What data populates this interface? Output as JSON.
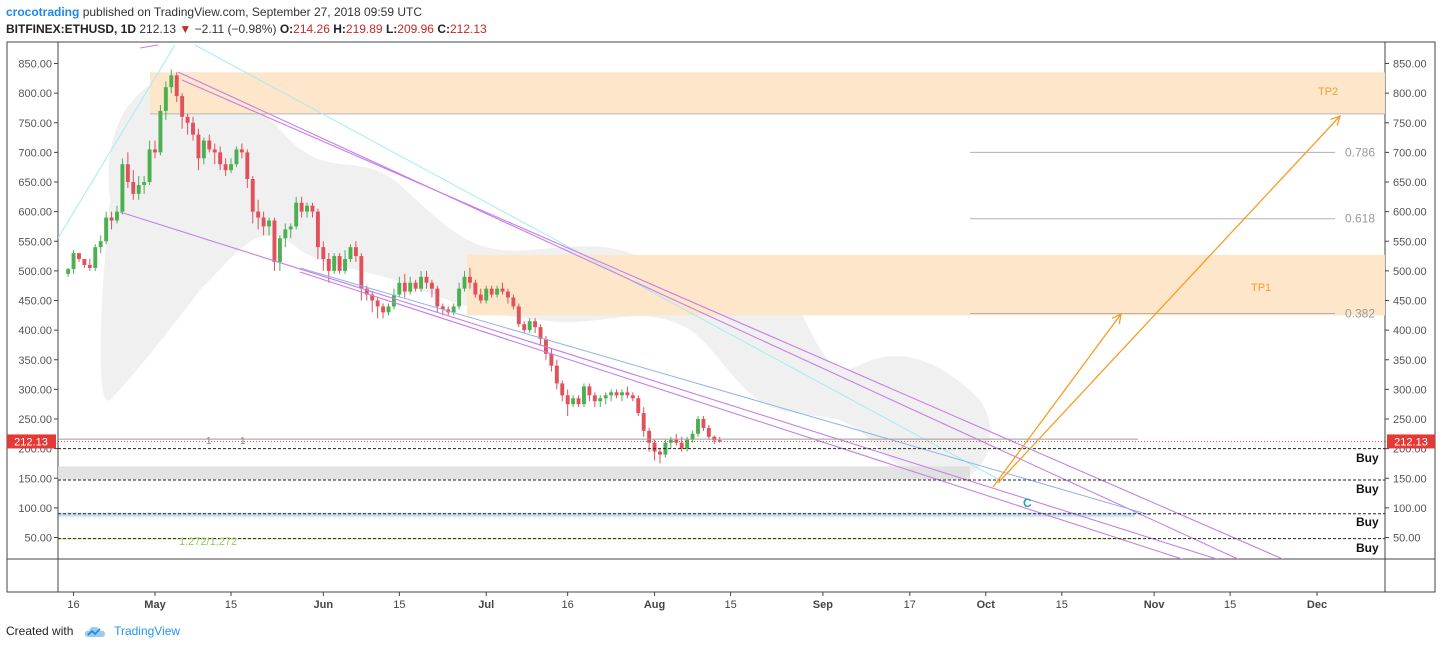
{
  "header": {
    "author": "crocotrading",
    "published": "published on TradingView.com, September 27, 2018 09:59 UTC",
    "symbol": "BITFINEX:ETHUSD, 1D",
    "last": "212.13",
    "change": "−2.11 (−0.98%)",
    "o_label": "O:",
    "o_value": "214.26",
    "h_label": "H:",
    "h_value": "219.89",
    "l_label": "L:",
    "l_value": "209.96",
    "c_label": "C:",
    "c_value": "212.13"
  },
  "footer": {
    "created_with": "Created with",
    "brand": "TradingView",
    "logo_icon": "tradingview-cloud-icon"
  },
  "colors": {
    "up": "#4caf50",
    "down": "#e0515b",
    "zone": "#fde5c6",
    "wedge": "#c77fe8",
    "trendline": "#a5ecf0",
    "arrow": "#f59d26",
    "price_line": "#e53935",
    "fib": "#b0b0b0",
    "cloud": "#ededed",
    "buy_line": "#222222",
    "blue_band": "#6aa0d8",
    "green_line": "#d7e66f"
  },
  "chart_data": {
    "type": "candlestick",
    "interval": "1D",
    "y_axis_ticks": [
      850,
      800,
      750,
      700,
      650,
      600,
      550,
      500,
      450,
      400,
      350,
      300,
      250,
      200,
      150,
      100,
      50
    ],
    "y_axis_labels": [
      "850.00",
      "800.00",
      "750.00",
      "700.00",
      "650.00",
      "600.00",
      "550.00",
      "500.00",
      "450.00",
      "400.00",
      "350.00",
      "300.00",
      "250.00",
      "200.00",
      "150.00",
      "100.00",
      "50.00"
    ],
    "x_axis_labels": [
      "16",
      "May",
      "15",
      "Jun",
      "15",
      "Jul",
      "16",
      "Aug",
      "15",
      "Sep",
      "17",
      "Oct",
      "15",
      "Nov",
      "15",
      "Dec"
    ],
    "x_axis_days": [
      -15,
      0,
      14,
      31,
      45,
      61,
      76,
      92,
      106,
      123,
      139,
      153,
      167,
      184,
      198,
      214
    ],
    "last_price": 212.13,
    "last_price_label": "212.13",
    "candles_ohlc": [
      [
        495,
        505,
        490,
        503
      ],
      [
        503,
        535,
        495,
        530
      ],
      [
        530,
        525,
        515,
        520
      ],
      [
        520,
        515,
        505,
        510
      ],
      [
        510,
        520,
        500,
        505
      ],
      [
        505,
        545,
        500,
        540
      ],
      [
        540,
        560,
        530,
        550
      ],
      [
        550,
        600,
        545,
        590
      ],
      [
        590,
        600,
        570,
        585
      ],
      [
        585,
        610,
        580,
        600
      ],
      [
        600,
        690,
        595,
        680
      ],
      [
        680,
        700,
        640,
        650
      ],
      [
        650,
        670,
        620,
        630
      ],
      [
        630,
        660,
        620,
        645
      ],
      [
        645,
        660,
        630,
        650
      ],
      [
        650,
        720,
        645,
        705
      ],
      [
        705,
        720,
        690,
        700
      ],
      [
        700,
        780,
        695,
        770
      ],
      [
        770,
        820,
        755,
        810
      ],
      [
        810,
        840,
        800,
        830
      ],
      [
        830,
        835,
        785,
        795
      ],
      [
        795,
        800,
        740,
        760
      ],
      [
        760,
        765,
        730,
        750
      ],
      [
        750,
        760,
        720,
        730
      ],
      [
        730,
        740,
        670,
        690
      ],
      [
        690,
        725,
        680,
        720
      ],
      [
        720,
        730,
        700,
        705
      ],
      [
        705,
        715,
        680,
        700
      ],
      [
        700,
        710,
        670,
        680
      ],
      [
        680,
        690,
        660,
        670
      ],
      [
        670,
        690,
        665,
        680
      ],
      [
        680,
        710,
        675,
        705
      ],
      [
        705,
        715,
        690,
        700
      ],
      [
        700,
        705,
        640,
        655
      ],
      [
        655,
        660,
        580,
        600
      ],
      [
        600,
        620,
        570,
        590
      ],
      [
        590,
        600,
        560,
        575
      ],
      [
        575,
        590,
        560,
        585
      ],
      [
        585,
        590,
        500,
        515
      ],
      [
        515,
        560,
        500,
        555
      ],
      [
        555,
        580,
        540,
        570
      ],
      [
        570,
        580,
        555,
        575
      ],
      [
        575,
        625,
        570,
        615
      ],
      [
        615,
        625,
        590,
        600
      ],
      [
        600,
        615,
        590,
        610
      ],
      [
        610,
        615,
        590,
        600
      ],
      [
        600,
        605,
        520,
        540
      ],
      [
        540,
        550,
        500,
        520
      ],
      [
        520,
        530,
        480,
        500
      ],
      [
        500,
        530,
        495,
        525
      ],
      [
        525,
        530,
        495,
        500
      ],
      [
        500,
        535,
        495,
        520
      ],
      [
        520,
        545,
        515,
        540
      ],
      [
        540,
        550,
        515,
        525
      ],
      [
        525,
        530,
        450,
        470
      ],
      [
        470,
        475,
        450,
        460
      ],
      [
        460,
        465,
        430,
        450
      ],
      [
        450,
        455,
        420,
        440
      ],
      [
        440,
        445,
        420,
        430
      ],
      [
        430,
        445,
        425,
        440
      ],
      [
        440,
        470,
        435,
        460
      ],
      [
        460,
        490,
        455,
        480
      ],
      [
        480,
        495,
        455,
        465
      ],
      [
        465,
        490,
        460,
        480
      ],
      [
        480,
        485,
        465,
        470
      ],
      [
        470,
        500,
        465,
        490
      ],
      [
        490,
        500,
        470,
        480
      ],
      [
        480,
        485,
        455,
        470
      ],
      [
        470,
        475,
        430,
        440
      ],
      [
        440,
        445,
        425,
        435
      ],
      [
        435,
        440,
        425,
        430
      ],
      [
        430,
        445,
        425,
        440
      ],
      [
        440,
        480,
        435,
        470
      ],
      [
        470,
        500,
        465,
        490
      ],
      [
        490,
        505,
        470,
        480
      ],
      [
        480,
        485,
        455,
        460
      ],
      [
        460,
        470,
        445,
        450
      ],
      [
        450,
        475,
        445,
        470
      ],
      [
        470,
        475,
        455,
        460
      ],
      [
        460,
        475,
        455,
        470
      ],
      [
        470,
        480,
        460,
        465
      ],
      [
        465,
        470,
        445,
        455
      ],
      [
        455,
        460,
        435,
        440
      ],
      [
        440,
        445,
        405,
        410
      ],
      [
        410,
        415,
        395,
        400
      ],
      [
        400,
        420,
        395,
        415
      ],
      [
        415,
        420,
        395,
        405
      ],
      [
        405,
        410,
        375,
        385
      ],
      [
        385,
        390,
        350,
        360
      ],
      [
        360,
        370,
        330,
        340
      ],
      [
        340,
        350,
        300,
        310
      ],
      [
        310,
        315,
        280,
        290
      ],
      [
        290,
        300,
        255,
        275
      ],
      [
        275,
        290,
        270,
        285
      ],
      [
        285,
        290,
        270,
        275
      ],
      [
        275,
        310,
        270,
        305
      ],
      [
        305,
        310,
        280,
        290
      ],
      [
        290,
        295,
        270,
        280
      ],
      [
        280,
        290,
        270,
        285
      ],
      [
        285,
        295,
        275,
        290
      ],
      [
        290,
        300,
        280,
        295
      ],
      [
        295,
        300,
        285,
        290
      ],
      [
        290,
        300,
        280,
        295
      ],
      [
        295,
        305,
        285,
        290
      ],
      [
        290,
        295,
        280,
        285
      ],
      [
        285,
        290,
        255,
        260
      ],
      [
        260,
        270,
        220,
        230
      ],
      [
        230,
        235,
        195,
        210
      ],
      [
        210,
        215,
        180,
        195
      ],
      [
        195,
        200,
        175,
        190
      ],
      [
        190,
        215,
        185,
        210
      ],
      [
        210,
        220,
        200,
        215
      ],
      [
        215,
        225,
        205,
        210
      ],
      [
        210,
        220,
        195,
        200
      ],
      [
        200,
        220,
        195,
        215
      ],
      [
        215,
        230,
        210,
        225
      ],
      [
        225,
        255,
        220,
        250
      ],
      [
        250,
        255,
        230,
        235
      ],
      [
        235,
        240,
        215,
        220
      ],
      [
        220,
        222,
        208,
        214
      ],
      [
        214.26,
        219.89,
        209.96,
        212.13
      ]
    ],
    "zones": [
      {
        "name": "TP2",
        "from": 765,
        "to": 835,
        "label": "TP2"
      },
      {
        "name": "TP1",
        "from": 425,
        "to": 527,
        "label": "TP1"
      }
    ],
    "fib_levels": [
      {
        "label": "0.786",
        "value": 700
      },
      {
        "label": "0.618",
        "value": 588
      },
      {
        "label": "0.382",
        "value": 428
      }
    ],
    "buy_levels": [
      {
        "label": "Buy",
        "value": 200
      },
      {
        "label": "Buy",
        "value": 147
      },
      {
        "label": "Buy",
        "value": 90
      },
      {
        "label": "Buy",
        "value": 48
      }
    ],
    "annotations": [
      {
        "text": "1",
        "type": "marker"
      },
      {
        "text": "1",
        "type": "marker"
      },
      {
        "text": "1.272/1.272",
        "type": "fib-ext"
      },
      {
        "text": "C",
        "type": "wave"
      }
    ]
  }
}
